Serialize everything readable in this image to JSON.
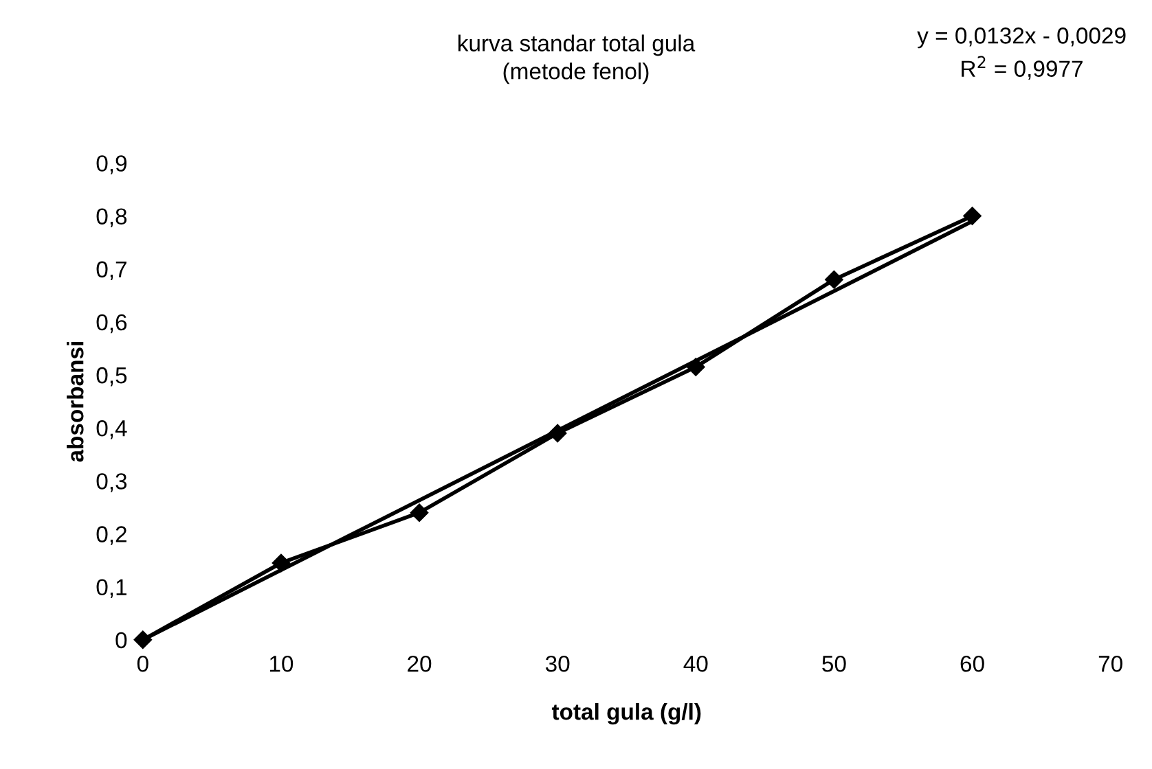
{
  "chart_data": {
    "type": "line",
    "title": "kurva standar total gula\n(metode fenol)",
    "xlabel": "total gula (g/l)",
    "ylabel": "absorbansi",
    "annotations": [
      "y = 0,0132x - 0,0029\nR$^{2}$ = 0,9977"
    ],
    "series": [
      {
        "color": "#000000",
        "x": [
          0,
          10,
          20,
          30,
          40,
          50,
          60
        ],
        "values": [
          0,
          0.145,
          0.24,
          0.39,
          0.515,
          0.68,
          0.8
        ],
        "marker": "diamond"
      },
      {
        "color": "#000000",
        "x": [
          0,
          60
        ],
        "values": [
          0,
          0.79
        ],
        "marker": "none"
      }
    ],
    "xlim": [
      0,
      70
    ],
    "xticks": [
      0,
      10,
      20,
      30,
      40,
      50,
      60,
      70
    ],
    "ylim": [
      0,
      0.9
    ],
    "yticks": [
      0,
      {
        "value": 0.1,
        "label": "0,1"
      },
      {
        "value": 0.2,
        "label": "0,2"
      },
      {
        "value": 0.3,
        "label": "0,3"
      },
      {
        "value": 0.4,
        "label": "0,4"
      },
      {
        "value": 0.5,
        "label": "0,5"
      },
      {
        "value": 0.6,
        "label": "0,6"
      },
      {
        "value": 0.7,
        "label": "0,7"
      },
      {
        "value": 0.8,
        "label": "0,8"
      },
      {
        "value": 0.9,
        "label": "0,9"
      }
    ],
    "grid": false,
    "legend": false
  }
}
